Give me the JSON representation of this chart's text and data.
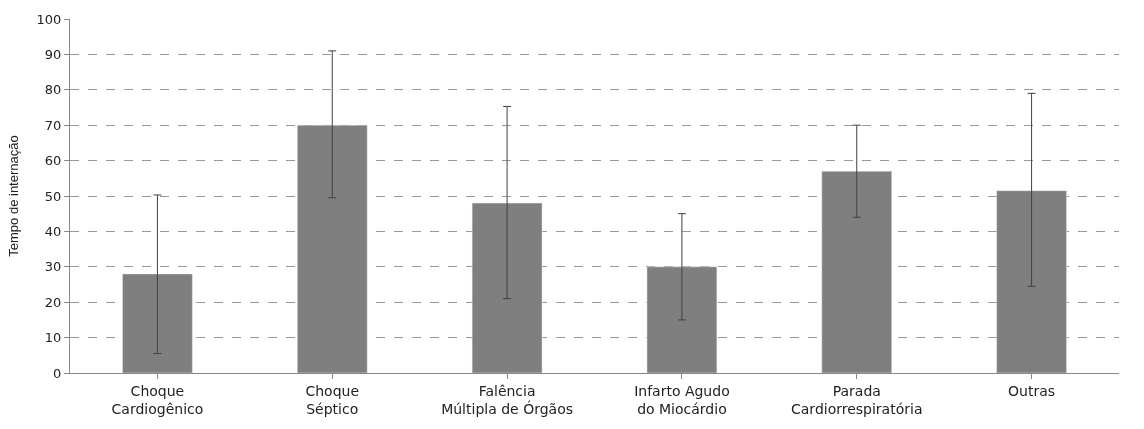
{
  "chart_data": {
    "type": "bar",
    "ylabel": "Tempo de internação",
    "categories": [
      "Choque\nCardiogênico",
      "Choque\nSéptico",
      "Falência\nMúltipla de Órgãos",
      "Infarto Agudo\ndo Miocárdio",
      "Parada\nCardiorrespiratória",
      "Outras"
    ],
    "values": [
      28,
      70,
      48,
      30,
      57,
      51.5
    ],
    "errors": [
      [
        5.5,
        50.3
      ],
      [
        49.5,
        91
      ],
      [
        21,
        75.3
      ],
      [
        15,
        45
      ],
      [
        44,
        70
      ],
      [
        24.5,
        79
      ]
    ],
    "color": "#7f7f7f",
    "ylim": [
      0,
      100
    ],
    "yticks": [
      0,
      10,
      20,
      30,
      40,
      50,
      60,
      70,
      80,
      90,
      100
    ],
    "grid": "y",
    "line_style": "dashed"
  }
}
